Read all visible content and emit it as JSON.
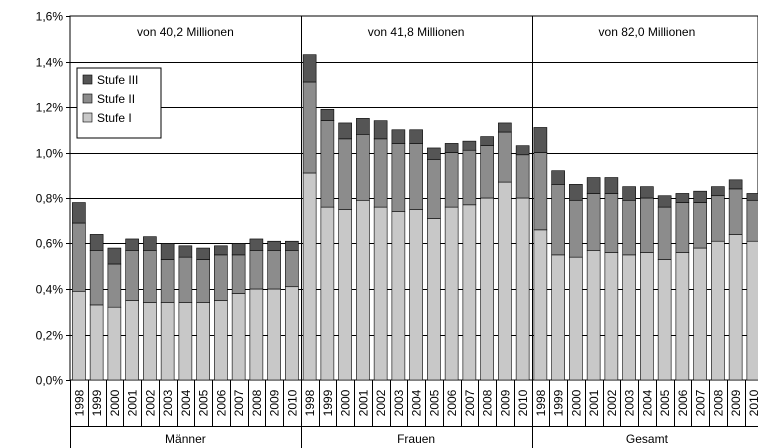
{
  "chart_data": {
    "type": "bar",
    "stacked": true,
    "ylim": [
      0,
      1.6
    ],
    "yticks": [
      "0,0%",
      "0,2%",
      "0,4%",
      "0,6%",
      "0,8%",
      "1,0%",
      "1,2%",
      "1,4%",
      "1,6%"
    ],
    "grid": true,
    "legend_position": "top-left",
    "years": [
      "1998",
      "1999",
      "2000",
      "2001",
      "2002",
      "2003",
      "2004",
      "2005",
      "2006",
      "2007",
      "2008",
      "2009",
      "2010"
    ],
    "groups": [
      {
        "label": "Männer",
        "population": "von 40,2 Millionen",
        "stufe1": [
          0.39,
          0.33,
          0.32,
          0.35,
          0.34,
          0.34,
          0.34,
          0.34,
          0.35,
          0.38,
          0.4,
          0.4,
          0.41
        ],
        "stufe2": [
          0.3,
          0.24,
          0.19,
          0.22,
          0.23,
          0.19,
          0.2,
          0.19,
          0.2,
          0.17,
          0.17,
          0.17,
          0.16
        ],
        "stufe3": [
          0.09,
          0.07,
          0.07,
          0.05,
          0.06,
          0.07,
          0.05,
          0.05,
          0.04,
          0.05,
          0.05,
          0.04,
          0.04
        ]
      },
      {
        "label": "Frauen",
        "population": "von 41,8 Millionen",
        "stufe1": [
          0.91,
          0.76,
          0.75,
          0.79,
          0.76,
          0.74,
          0.75,
          0.71,
          0.76,
          0.77,
          0.8,
          0.87,
          0.8
        ],
        "stufe2": [
          0.4,
          0.38,
          0.31,
          0.29,
          0.3,
          0.3,
          0.29,
          0.26,
          0.24,
          0.24,
          0.23,
          0.22,
          0.19
        ],
        "stufe3": [
          0.12,
          0.05,
          0.07,
          0.07,
          0.08,
          0.06,
          0.06,
          0.05,
          0.04,
          0.04,
          0.04,
          0.04,
          0.04
        ]
      },
      {
        "label": "Gesamt",
        "population": "von 82,0 Millionen",
        "stufe1": [
          0.66,
          0.55,
          0.54,
          0.57,
          0.56,
          0.55,
          0.56,
          0.53,
          0.56,
          0.58,
          0.61,
          0.64,
          0.61
        ],
        "stufe2": [
          0.34,
          0.31,
          0.25,
          0.25,
          0.26,
          0.24,
          0.24,
          0.23,
          0.22,
          0.2,
          0.2,
          0.2,
          0.18
        ],
        "stufe3": [
          0.11,
          0.06,
          0.07,
          0.07,
          0.07,
          0.06,
          0.05,
          0.05,
          0.04,
          0.05,
          0.04,
          0.04,
          0.03
        ]
      }
    ],
    "series": [
      {
        "name": "Stufe III",
        "key": "stufe3",
        "color": "#555555"
      },
      {
        "name": "Stufe II",
        "key": "stufe2",
        "color": "#8c8c8c"
      },
      {
        "name": "Stufe I",
        "key": "stufe1",
        "color": "#c8c8c8"
      }
    ]
  }
}
